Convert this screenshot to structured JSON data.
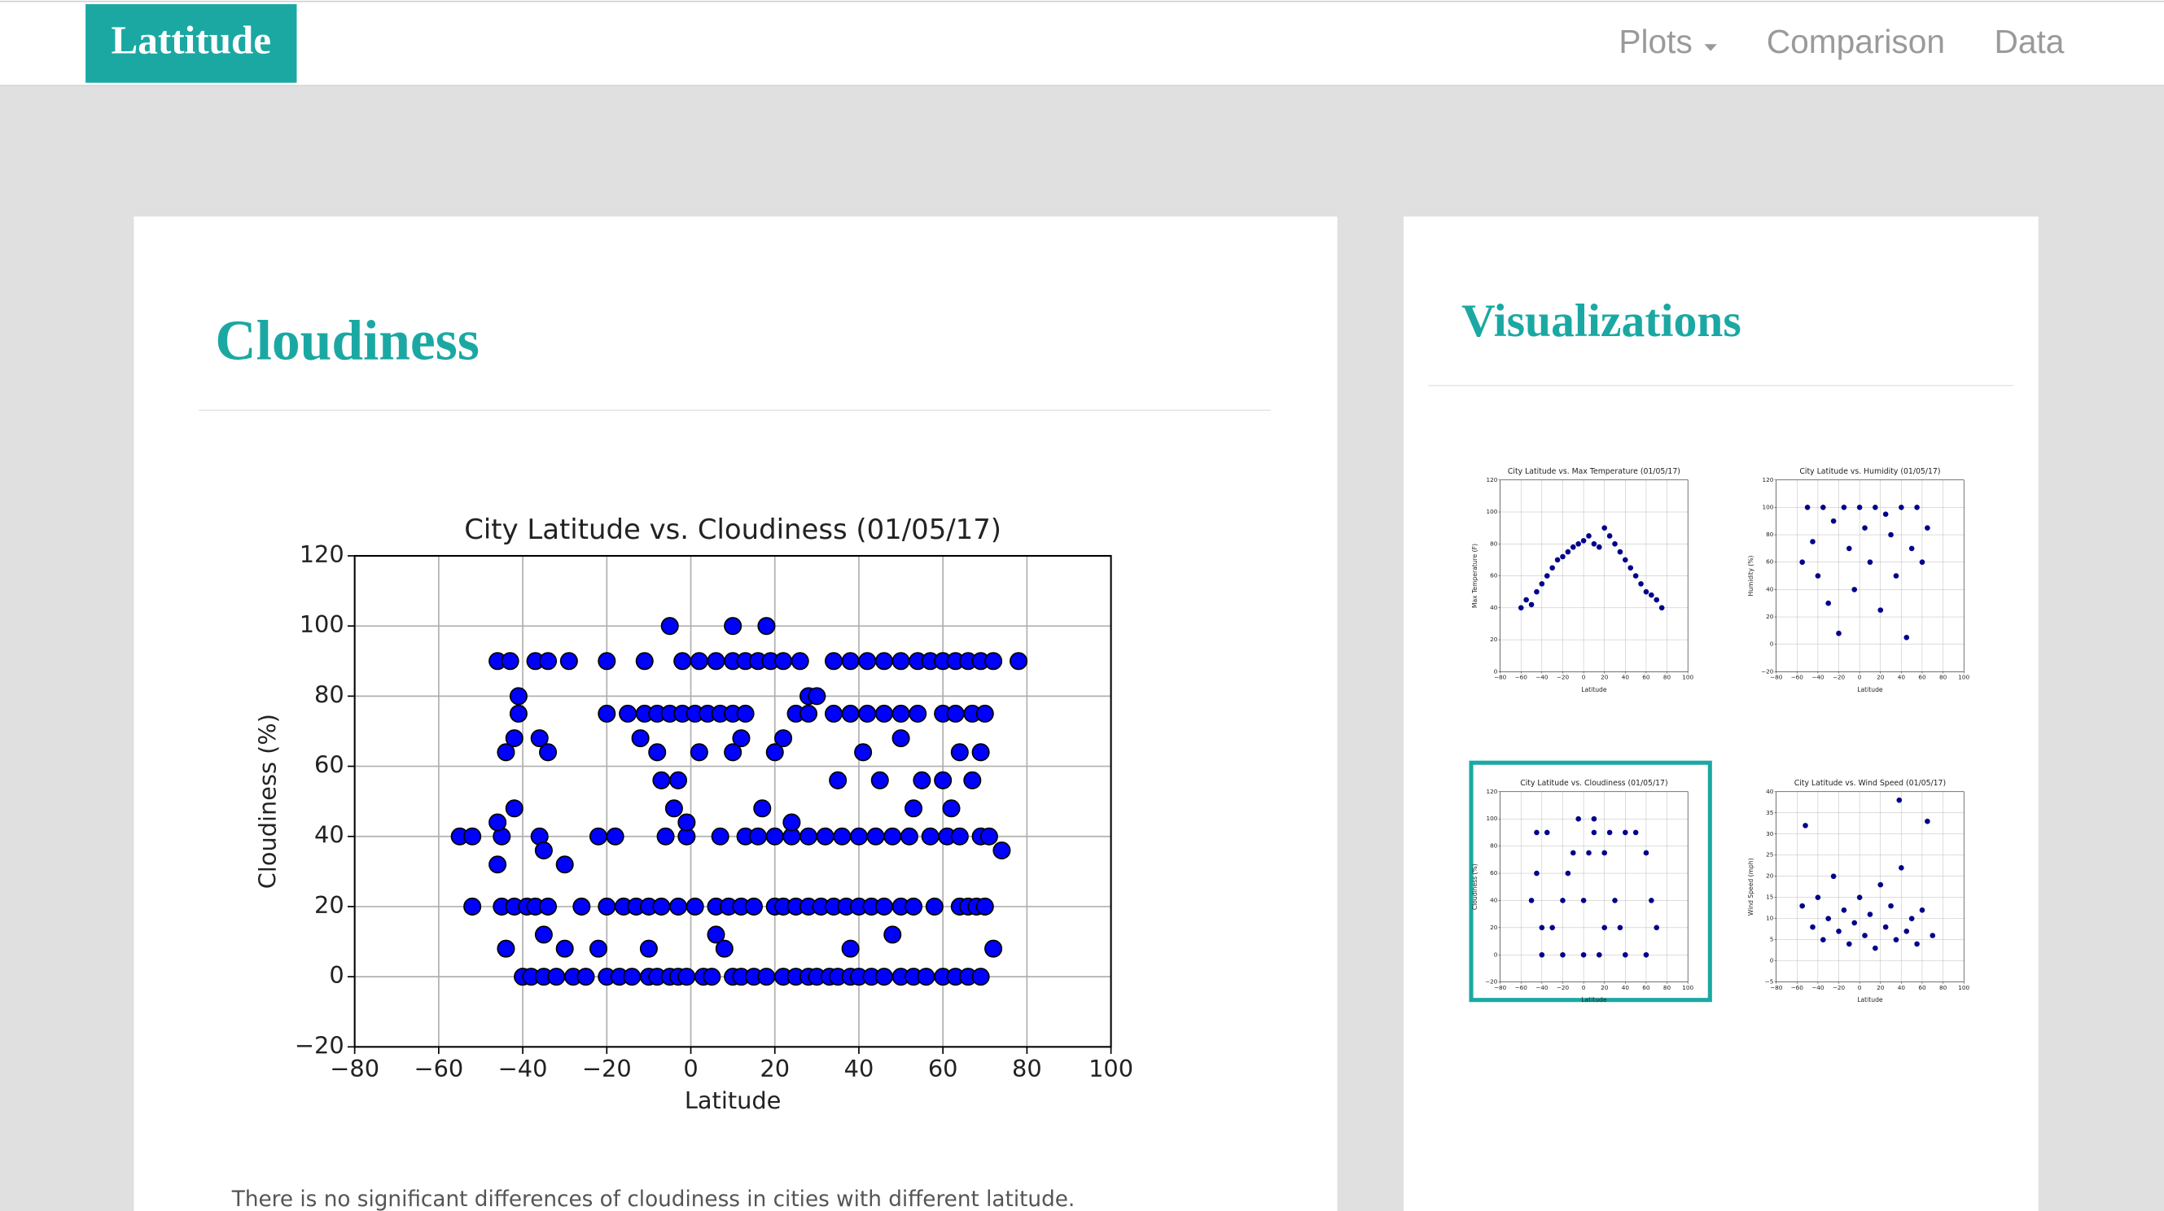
{
  "nav": {
    "brand": "Lattitude",
    "links": [
      "Plots",
      "Comparison",
      "Data"
    ]
  },
  "main_heading": "Cloudiness",
  "description": "There is no significant differences of cloudiness in cities with different latitude.",
  "sidebar_heading": "Visualizations",
  "chart_data": [
    {
      "type": "scatter",
      "title": "City Latitude vs. Cloudiness (01/05/17)",
      "x_label": "Latitude",
      "y_label": "Cloudiness (%)",
      "color": "#0000ff",
      "edge_color": "#000000",
      "grid": true,
      "xlim": [
        -80,
        100
      ],
      "ylim": [
        -20,
        120
      ],
      "xticks": [
        {
          "value": -80,
          "label": "−80"
        },
        {
          "value": -60,
          "label": "−60"
        },
        {
          "value": -40,
          "label": "−40"
        },
        {
          "value": -20,
          "label": "−20"
        },
        0,
        20,
        40,
        60,
        80,
        100
      ],
      "yticks": [
        {
          "value": -20,
          "label": "−20"
        },
        0,
        20,
        40,
        60,
        80,
        100,
        120
      ],
      "x": [
        -40,
        -38,
        -35,
        -32,
        -28,
        -25,
        -20,
        -17,
        -14,
        -10,
        -8,
        -5,
        -3,
        -1,
        3,
        5,
        10,
        12,
        15,
        18,
        22,
        25,
        28,
        30,
        33,
        35,
        38,
        40,
        43,
        46,
        50,
        53,
        56,
        60,
        63,
        66,
        69,
        -52,
        -45,
        -42,
        -39,
        -37,
        -34,
        -26,
        -20,
        -16,
        -13,
        -10,
        -7,
        -3,
        1,
        6,
        9,
        12,
        15,
        20,
        22,
        25,
        28,
        31,
        34,
        37,
        40,
        43,
        46,
        50,
        53,
        58,
        64,
        66,
        68,
        70,
        -55,
        -52,
        -45,
        -36,
        -22,
        -18,
        -6,
        -1,
        7,
        13,
        16,
        20,
        24,
        28,
        32,
        36,
        40,
        44,
        48,
        52,
        57,
        61,
        64,
        69,
        71,
        -41,
        -20,
        -15,
        -11,
        -8,
        -5,
        -2,
        1,
        4,
        7,
        10,
        13,
        25,
        28,
        34,
        38,
        42,
        46,
        50,
        54,
        60,
        63,
        67,
        70,
        -46,
        -43,
        -37,
        -34,
        -29,
        -20,
        -11,
        -2,
        2,
        6,
        10,
        13,
        16,
        19,
        22,
        26,
        34,
        38,
        42,
        46,
        50,
        54,
        57,
        60,
        63,
        66,
        69,
        72,
        78,
        -44,
        -42,
        -41,
        -36,
        -34,
        -30,
        -35,
        -44,
        -35,
        -30,
        -22,
        -10,
        -8,
        -12,
        -7,
        -3,
        -4,
        -1,
        2,
        6,
        8,
        10,
        12,
        17,
        20,
        22,
        24,
        28,
        30,
        35,
        38,
        41,
        45,
        48,
        50,
        53,
        55,
        60,
        62,
        64,
        67,
        69,
        72,
        10,
        18,
        -5,
        -46,
        -42,
        -46,
        74
      ],
      "values": [
        0,
        0,
        0,
        0,
        0,
        0,
        0,
        0,
        0,
        0,
        0,
        0,
        0,
        0,
        0,
        0,
        0,
        0,
        0,
        0,
        0,
        0,
        0,
        0,
        0,
        0,
        0,
        0,
        0,
        0,
        0,
        0,
        0,
        0,
        0,
        0,
        0,
        20,
        20,
        20,
        20,
        20,
        20,
        20,
        20,
        20,
        20,
        20,
        20,
        20,
        20,
        20,
        20,
        20,
        20,
        20,
        20,
        20,
        20,
        20,
        20,
        20,
        20,
        20,
        20,
        20,
        20,
        20,
        20,
        20,
        20,
        20,
        40,
        40,
        40,
        40,
        40,
        40,
        40,
        40,
        40,
        40,
        40,
        40,
        40,
        40,
        40,
        40,
        40,
        40,
        40,
        40,
        40,
        40,
        40,
        40,
        40,
        75,
        75,
        75,
        75,
        75,
        75,
        75,
        75,
        75,
        75,
        75,
        75,
        75,
        75,
        75,
        75,
        75,
        75,
        75,
        75,
        75,
        75,
        75,
        75,
        90,
        90,
        90,
        90,
        90,
        90,
        90,
        90,
        90,
        90,
        90,
        90,
        90,
        90,
        90,
        90,
        90,
        90,
        90,
        90,
        90,
        90,
        90,
        90,
        90,
        90,
        90,
        90,
        90,
        64,
        68,
        80,
        68,
        64,
        32,
        36,
        8,
        12,
        8,
        8,
        8,
        64,
        68,
        56,
        56,
        48,
        44,
        64,
        12,
        8,
        64,
        68,
        48,
        64,
        68,
        44,
        80,
        80,
        56,
        8,
        64,
        56,
        12,
        68,
        48,
        56,
        56,
        48,
        64,
        56,
        64,
        8,
        100,
        100,
        100,
        44,
        48,
        32,
        36
      ]
    },
    {
      "type": "scatter",
      "title": "City Latitude vs. Max Temperature (01/05/17)",
      "x_label": "Latitude",
      "y_label": "Max Temperature (F)",
      "color": "#00008b",
      "grid": true,
      "xlim": [
        -80,
        100
      ],
      "ylim": [
        0,
        120
      ],
      "xticks": [
        {
          "value": -80,
          "label": "−80"
        },
        {
          "value": -60,
          "label": "−60"
        },
        {
          "value": -40,
          "label": "−40"
        },
        {
          "value": -20,
          "label": "−20"
        },
        0,
        20,
        40,
        60,
        80,
        100
      ],
      "yticks": [
        0,
        20,
        40,
        60,
        80,
        100,
        120
      ],
      "x": [
        -60,
        -55,
        -50,
        -45,
        -40,
        -35,
        -30,
        -25,
        -20,
        -15,
        -10,
        -5,
        0,
        5,
        10,
        15,
        20,
        25,
        30,
        35,
        40,
        45,
        50,
        55,
        60,
        65,
        70,
        75
      ],
      "values": [
        40,
        45,
        42,
        50,
        55,
        60,
        65,
        70,
        72,
        75,
        78,
        80,
        82,
        85,
        80,
        78,
        90,
        85,
        80,
        75,
        70,
        65,
        60,
        55,
        50,
        48,
        45,
        40
      ]
    },
    {
      "type": "scatter",
      "title": "City Latitude vs. Humidity (01/05/17)",
      "x_label": "Latitude",
      "y_label": "Humidity (%)",
      "color": "#00008b",
      "grid": true,
      "xlim": [
        -80,
        100
      ],
      "ylim": [
        -20,
        120
      ],
      "xticks": [
        {
          "value": -80,
          "label": "−80"
        },
        {
          "value": -60,
          "label": "−60"
        },
        {
          "value": -40,
          "label": "−40"
        },
        {
          "value": -20,
          "label": "−20"
        },
        0,
        20,
        40,
        60,
        80,
        100
      ],
      "yticks": [
        {
          "value": -20,
          "label": "−20"
        },
        0,
        20,
        40,
        60,
        80,
        100,
        120
      ],
      "x": [
        -55,
        -50,
        -45,
        -40,
        -35,
        -30,
        -25,
        -20,
        -15,
        -10,
        -5,
        0,
        5,
        10,
        15,
        20,
        25,
        30,
        35,
        40,
        45,
        50,
        55,
        60,
        65
      ],
      "values": [
        60,
        100,
        75,
        50,
        100,
        30,
        90,
        8,
        100,
        70,
        40,
        100,
        85,
        60,
        100,
        25,
        95,
        80,
        50,
        100,
        5,
        70,
        100,
        60,
        85
      ]
    },
    {
      "type": "scatter",
      "title": "City Latitude vs. Cloudiness (01/05/17)",
      "x_label": "Latitude",
      "y_label": "Cloudiness (%)",
      "color": "#00008b",
      "grid": true,
      "highlighted": true,
      "xlim": [
        -80,
        100
      ],
      "ylim": [
        -20,
        120
      ],
      "xticks": [
        {
          "value": -80,
          "label": "−80"
        },
        {
          "value": -60,
          "label": "−60"
        },
        {
          "value": -40,
          "label": "−40"
        },
        {
          "value": -20,
          "label": "−20"
        },
        0,
        20,
        40,
        60,
        80,
        100
      ],
      "yticks": [
        {
          "value": -20,
          "label": "−20"
        },
        0,
        20,
        40,
        60,
        80,
        100,
        120
      ],
      "x": [
        -50,
        -45,
        -40,
        -35,
        -30,
        -20,
        -10,
        -5,
        0,
        5,
        10,
        15,
        20,
        25,
        30,
        40,
        50,
        60,
        70,
        -40,
        -20,
        0,
        20,
        40,
        60,
        -45,
        -15,
        10,
        35,
        65
      ],
      "values": [
        40,
        90,
        0,
        90,
        20,
        0,
        75,
        100,
        40,
        75,
        90,
        0,
        20,
        90,
        40,
        0,
        90,
        75,
        20,
        20,
        40,
        0,
        75,
        90,
        0,
        60,
        60,
        100,
        20,
        40
      ]
    },
    {
      "type": "scatter",
      "title": "City Latitude vs. Wind Speed (01/05/17)",
      "x_label": "Latitude",
      "y_label": "Wind Speed (mph)",
      "color": "#00008b",
      "grid": true,
      "xlim": [
        -80,
        100
      ],
      "ylim": [
        -5,
        40
      ],
      "xticks": [
        {
          "value": -80,
          "label": "−80"
        },
        {
          "value": -60,
          "label": "−60"
        },
        {
          "value": -40,
          "label": "−40"
        },
        {
          "value": -20,
          "label": "−20"
        },
        0,
        20,
        40,
        60,
        80,
        100
      ],
      "yticks": [
        {
          "value": -5,
          "label": "−5"
        },
        0,
        5,
        10,
        15,
        20,
        25,
        30,
        35,
        40
      ],
      "x": [
        -55,
        -52,
        -45,
        -40,
        -35,
        -30,
        -25,
        -20,
        -15,
        -10,
        -5,
        0,
        5,
        10,
        15,
        20,
        25,
        30,
        35,
        38,
        40,
        45,
        50,
        55,
        60,
        65,
        70
      ],
      "values": [
        13,
        32,
        8,
        15,
        5,
        10,
        20,
        7,
        12,
        4,
        9,
        15,
        6,
        11,
        3,
        18,
        8,
        13,
        5,
        38,
        22,
        7,
        10,
        4,
        12,
        33,
        6
      ]
    }
  ]
}
